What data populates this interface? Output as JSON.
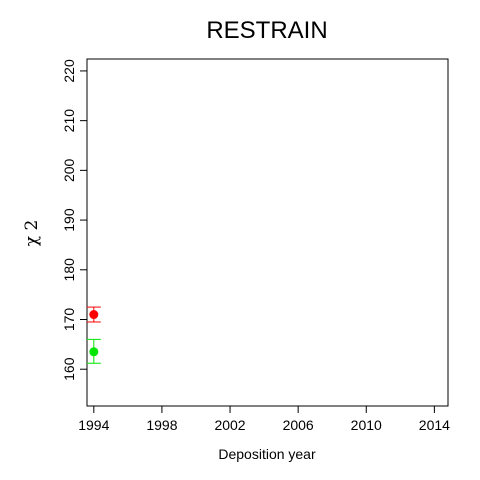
{
  "chart_data": {
    "type": "scatter",
    "title": "RESTRAIN",
    "xlabel": "Deposition year",
    "ylabel": "χ 2",
    "xlim": [
      1993.6,
      2014.8
    ],
    "ylim": [
      152.6,
      222.4
    ],
    "x_ticks": [
      "1994",
      "1998",
      "2002",
      "2006",
      "2010",
      "2014"
    ],
    "y_ticks": [
      "160",
      "170",
      "180",
      "190",
      "200",
      "210",
      "220"
    ],
    "grid": false,
    "series": [
      {
        "color": "#ff0000",
        "points": [
          {
            "x": 1994,
            "y": 171.0,
            "err_low": 169.5,
            "err_high": 172.5
          }
        ]
      },
      {
        "color": "#00e600",
        "points": [
          {
            "x": 1994,
            "y": 163.5,
            "err_low": 161.2,
            "err_high": 166.0
          }
        ]
      }
    ]
  }
}
